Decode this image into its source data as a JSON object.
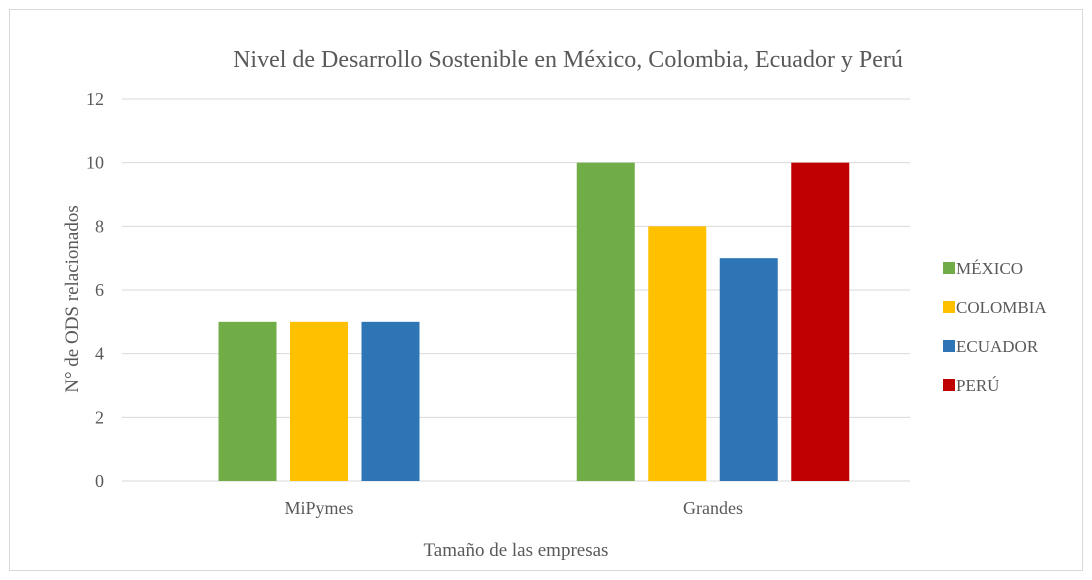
{
  "chart_data": {
    "type": "bar",
    "title": "Nivel de Desarrollo Sostenible en México, Colombia, Ecuador y Perú",
    "xlabel": "Tamaño de las empresas",
    "ylabel": "N° de ODS relacionados",
    "categories": [
      "MiPymes",
      "Grandes"
    ],
    "series": [
      {
        "name": "MÉXICO",
        "color": "#70ad47",
        "values": [
          5,
          10
        ]
      },
      {
        "name": "COLOMBIA",
        "color": "#ffc000",
        "values": [
          5,
          8
        ]
      },
      {
        "name": "ECUADOR",
        "color": "#2e75b6",
        "values": [
          5,
          7
        ]
      },
      {
        "name": "PERÚ",
        "color": "#c00000",
        "values": [
          null,
          10
        ]
      }
    ],
    "ylim": [
      0,
      12
    ],
    "yticks": [
      0,
      2,
      4,
      6,
      8,
      10,
      12
    ],
    "grid": true,
    "legend_position": "right"
  }
}
